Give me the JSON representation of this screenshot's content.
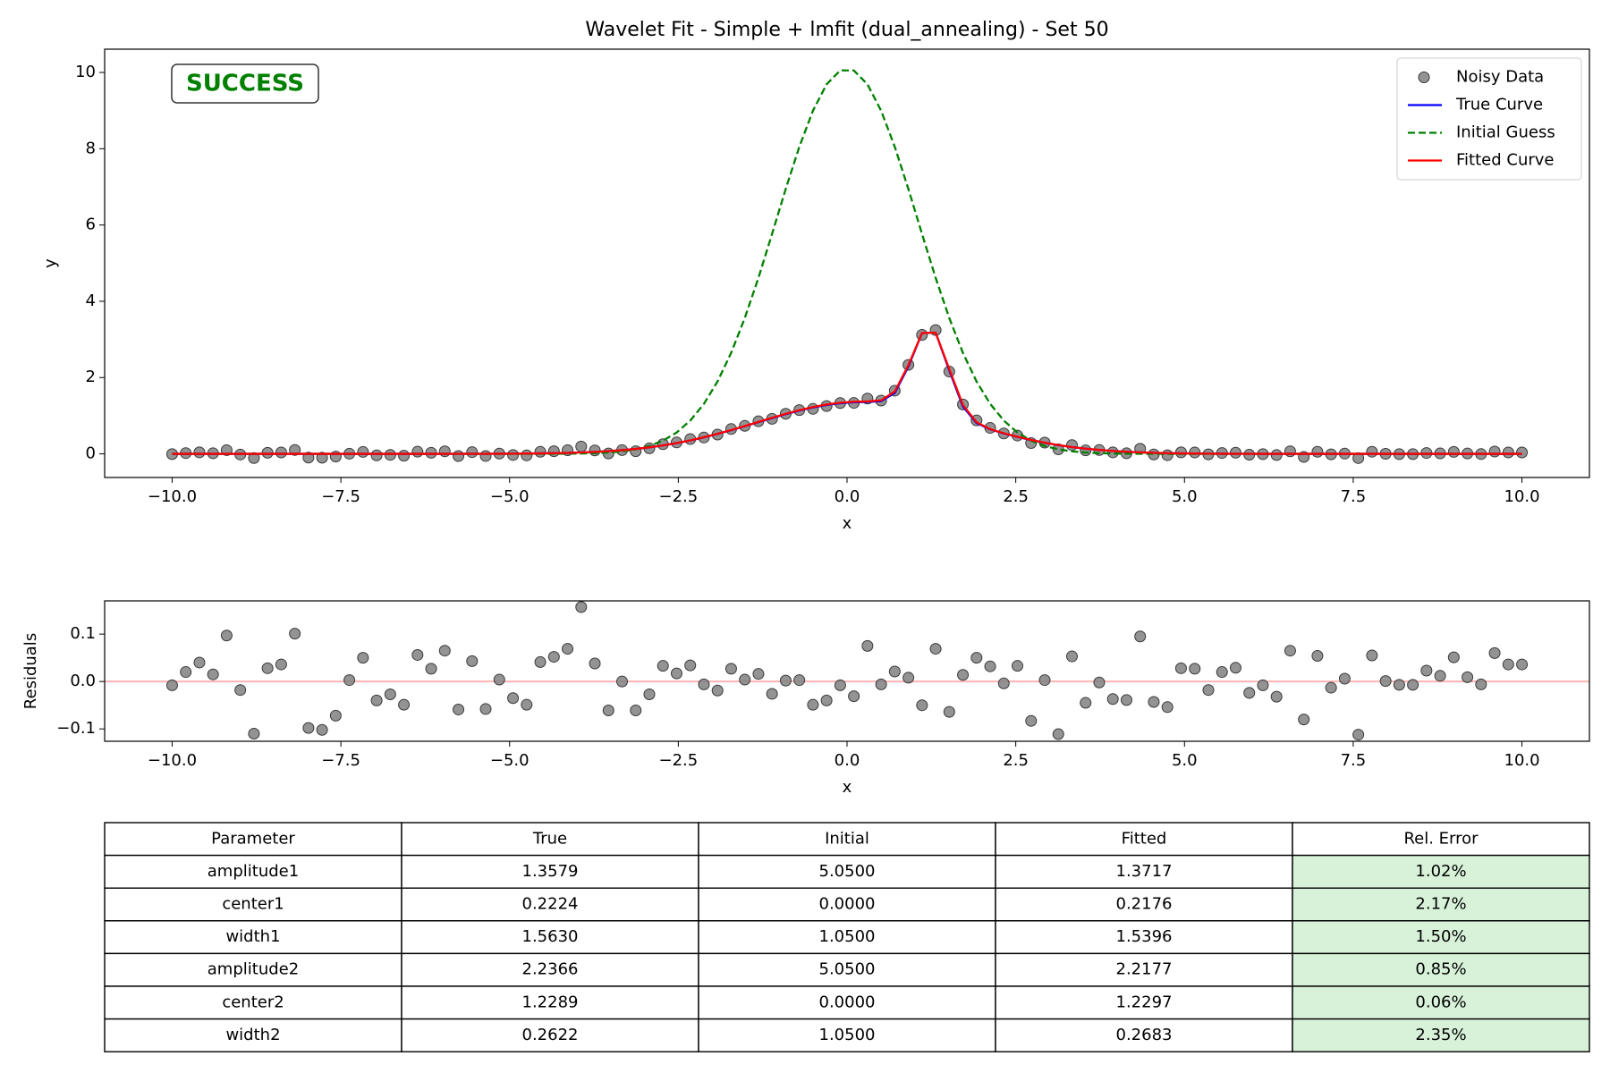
{
  "chart_data": [
    {
      "type": "line",
      "title": "Wavelet Fit - Simple + lmfit (dual_annealing) - Set 50",
      "xlabel": "x",
      "ylabel": "y",
      "annotation": {
        "text": "SUCCESS",
        "color": "#008000"
      },
      "legend": "upper right",
      "x": [
        -10,
        -9.798,
        -9.596,
        -9.394,
        -9.192,
        -8.99,
        -8.788,
        -8.586,
        -8.384,
        -8.182,
        -7.98,
        -7.778,
        -7.576,
        -7.374,
        -7.172,
        -6.97,
        -6.768,
        -6.566,
        -6.364,
        -6.162,
        -5.96,
        -5.758,
        -5.556,
        -5.354,
        -5.152,
        -4.949,
        -4.747,
        -4.545,
        -4.343,
        -4.141,
        -3.939,
        -3.737,
        -3.535,
        -3.333,
        -3.131,
        -2.929,
        -2.727,
        -2.525,
        -2.323,
        -2.121,
        -1.919,
        -1.717,
        -1.515,
        -1.313,
        -1.111,
        -0.909,
        -0.707,
        -0.505,
        -0.303,
        -0.101,
        0.101,
        0.303,
        0.505,
        0.707,
        0.909,
        1.111,
        1.313,
        1.515,
        1.717,
        1.919,
        2.121,
        2.323,
        2.525,
        2.727,
        2.929,
        3.131,
        3.333,
        3.535,
        3.737,
        3.939,
        4.141,
        4.343,
        4.545,
        4.747,
        4.949,
        5.152,
        5.354,
        5.556,
        5.758,
        5.96,
        6.162,
        6.364,
        6.566,
        6.768,
        6.97,
        7.172,
        7.374,
        7.576,
        7.778,
        7.98,
        8.182,
        8.384,
        8.586,
        8.788,
        8.99,
        9.192,
        9.394,
        9.596,
        9.798,
        10
      ],
      "series": [
        {
          "name": "Noisy Data",
          "color": "#808080",
          "marker": true,
          "values": [
            -0.008,
            0.02,
            0.04,
            0.015,
            0.097,
            -0.018,
            -0.11,
            0.028,
            0.036,
            0.101,
            -0.098,
            -0.102,
            -0.072,
            0.003,
            0.05,
            -0.04,
            -0.027,
            -0.049,
            0.056,
            0.027,
            0.065,
            -0.058,
            0.044,
            -0.056,
            0.007,
            -0.03,
            -0.041,
            0.053,
            0.069,
            0.094,
            0.193,
            0.089,
            0.01,
            0.097,
            0.068,
            0.144,
            0.254,
            0.299,
            0.387,
            0.428,
            0.506,
            0.651,
            0.733,
            0.853,
            0.919,
            1.051,
            1.147,
            1.178,
            1.253,
            1.332,
            1.336,
            1.449,
            1.397,
            1.655,
            2.332,
            3.119,
            3.246,
            2.157,
            1.294,
            0.878,
            0.68,
            0.535,
            0.48,
            0.282,
            0.295,
            0.119,
            0.231,
            0.091,
            0.1,
            0.038,
            0.015,
            0.133,
            -0.016,
            -0.036,
            0.04,
            0.035,
            -0.013,
            0.023,
            0.031,
            -0.023,
            -0.008,
            -0.032,
            0.065,
            -0.08,
            0.054,
            -0.013,
            0.006,
            -0.112,
            0.055,
            0.001,
            -0.007,
            -0.007,
            0.023,
            0.012,
            0.051,
            0.009,
            -0.006,
            0.06,
            0.036,
            0.036
          ]
        },
        {
          "name": "True Curve",
          "color": "#0000ff",
          "values": [
            0,
            0,
            0,
            0,
            0,
            0,
            0,
            0,
            0,
            0,
            0,
            0,
            0,
            0,
            0,
            0,
            0,
            0,
            0,
            0,
            0,
            0.001,
            0.001,
            0.002,
            0.003,
            0.005,
            0.008,
            0.012,
            0.017,
            0.025,
            0.036,
            0.051,
            0.071,
            0.097,
            0.129,
            0.17,
            0.22,
            0.281,
            0.351,
            0.432,
            0.522,
            0.62,
            0.724,
            0.831,
            0.937,
            1.04,
            1.134,
            1.216,
            1.281,
            1.327,
            1.353,
            1.36,
            1.381,
            1.597,
            2.289,
            3.167,
            3.178,
            2.185,
            1.24,
            0.808,
            0.641,
            0.534,
            0.443,
            0.362,
            0.29,
            0.228,
            0.177,
            0.135,
            0.101,
            0.074,
            0.054,
            0.038,
            0.027,
            0.018,
            0.012,
            0.008,
            0.005,
            0.003,
            0.002,
            0.001,
            0,
            0,
            0,
            0,
            0,
            0,
            0,
            0,
            0,
            0,
            0,
            0,
            0,
            0,
            0,
            0,
            0,
            0,
            0,
            0
          ]
        },
        {
          "name": "Initial Guess",
          "color": "#008000",
          "dashed": true,
          "values": [
            0,
            0,
            0,
            0,
            0,
            0,
            0,
            0,
            0,
            0,
            0,
            0,
            0,
            0,
            0,
            0,
            0,
            0,
            0,
            0,
            0,
            0,
            0,
            0,
            0,
            0,
            0,
            0.001,
            0.002,
            0.004,
            0.009,
            0.018,
            0.035,
            0.065,
            0.118,
            0.206,
            0.346,
            0.559,
            0.872,
            1.31,
            1.897,
            2.647,
            3.561,
            4.614,
            5.766,
            6.943,
            8.051,
            8.997,
            9.688,
            10.053,
            10.053,
            9.688,
            8.997,
            8.051,
            6.943,
            5.766,
            4.614,
            3.561,
            2.647,
            1.897,
            1.31,
            0.872,
            0.559,
            0.346,
            0.206,
            0.118,
            0.065,
            0.035,
            0.018,
            0.009,
            0.004,
            0.002,
            0.001,
            0,
            0,
            0,
            0,
            0,
            0,
            0,
            0,
            0,
            0,
            0,
            0,
            0,
            0,
            0,
            0,
            0,
            0,
            0,
            0,
            0,
            0,
            0,
            0,
            0,
            0,
            0
          ]
        },
        {
          "name": "Fitted Curve",
          "color": "#ff0000",
          "values": [
            0,
            0,
            0,
            0,
            0,
            0,
            0,
            0,
            0,
            0,
            0,
            0,
            0,
            0,
            0,
            0,
            0,
            0,
            0,
            0,
            0,
            0.001,
            0.001,
            0.002,
            0.003,
            0.005,
            0.008,
            0.012,
            0.017,
            0.025,
            0.036,
            0.051,
            0.071,
            0.097,
            0.129,
            0.171,
            0.221,
            0.282,
            0.353,
            0.434,
            0.525,
            0.624,
            0.729,
            0.837,
            0.945,
            1.049,
            1.144,
            1.227,
            1.293,
            1.34,
            1.367,
            1.374,
            1.403,
            1.634,
            2.324,
            3.169,
            3.177,
            2.221,
            1.28,
            0.828,
            0.648,
            0.539,
            0.447,
            0.365,
            0.292,
            0.23,
            0.178,
            0.136,
            0.102,
            0.075,
            0.054,
            0.038,
            0.027,
            0.018,
            0.012,
            0.008,
            0.005,
            0.003,
            0.002,
            0.001,
            0,
            0,
            0,
            0,
            0,
            0,
            0,
            0,
            0,
            0,
            0,
            0,
            0,
            0,
            0,
            0,
            0,
            0,
            0,
            0
          ]
        }
      ],
      "xlim": [
        -11,
        11
      ],
      "xticks": [
        {
          "value": -10,
          "label": "−10.0"
        },
        {
          "value": -7.5,
          "label": "−7.5"
        },
        {
          "value": -5,
          "label": "−5.0"
        },
        {
          "value": -2.5,
          "label": "−2.5"
        },
        {
          "value": 0,
          "label": "0.0"
        },
        {
          "value": 2.5,
          "label": "2.5"
        },
        {
          "value": 5,
          "label": "5.0"
        },
        {
          "value": 7.5,
          "label": "7.5"
        },
        {
          "value": 10,
          "label": "10.0"
        }
      ],
      "ylim": [
        -0.62,
        10.61
      ],
      "yticks": [
        0,
        2,
        4,
        6,
        8,
        10
      ]
    },
    {
      "type": "scatter",
      "xlabel": "x",
      "ylabel": "Residuals",
      "color": "#808080",
      "hline": 0,
      "hline_color": "#ffb3b3",
      "x": [
        -10,
        -9.798,
        -9.596,
        -9.394,
        -9.192,
        -8.99,
        -8.788,
        -8.586,
        -8.384,
        -8.182,
        -7.98,
        -7.778,
        -7.576,
        -7.374,
        -7.172,
        -6.97,
        -6.768,
        -6.566,
        -6.364,
        -6.162,
        -5.96,
        -5.758,
        -5.556,
        -5.354,
        -5.152,
        -4.949,
        -4.747,
        -4.545,
        -4.343,
        -4.141,
        -3.939,
        -3.737,
        -3.535,
        -3.333,
        -3.131,
        -2.929,
        -2.727,
        -2.525,
        -2.323,
        -2.121,
        -1.919,
        -1.717,
        -1.515,
        -1.313,
        -1.111,
        -0.909,
        -0.707,
        -0.505,
        -0.303,
        -0.101,
        0.101,
        0.303,
        0.505,
        0.707,
        0.909,
        1.111,
        1.313,
        1.515,
        1.717,
        1.919,
        2.121,
        2.323,
        2.525,
        2.727,
        2.929,
        3.131,
        3.333,
        3.535,
        3.737,
        3.939,
        4.141,
        4.343,
        4.545,
        4.747,
        4.949,
        5.152,
        5.354,
        5.556,
        5.758,
        5.96,
        6.162,
        6.364,
        6.566,
        6.768,
        6.97,
        7.172,
        7.374,
        7.576,
        7.778,
        7.98,
        8.182,
        8.384,
        8.586,
        8.788,
        8.99,
        9.192,
        9.394,
        9.596,
        9.798,
        10
      ],
      "values": [
        -0.008,
        0.02,
        0.04,
        0.015,
        0.097,
        -0.018,
        -0.11,
        0.028,
        0.036,
        0.101,
        -0.098,
        -0.102,
        -0.072,
        0.003,
        0.05,
        -0.04,
        -0.027,
        -0.049,
        0.056,
        0.027,
        0.065,
        -0.059,
        0.043,
        -0.058,
        0.004,
        -0.035,
        -0.049,
        0.041,
        0.052,
        0.069,
        0.157,
        0.038,
        -0.061,
        0,
        -0.061,
        -0.027,
        0.033,
        0.017,
        0.034,
        -0.006,
        -0.019,
        0.027,
        0.004,
        0.016,
        -0.026,
        0.002,
        0.003,
        -0.049,
        -0.04,
        -0.008,
        -0.031,
        0.075,
        -0.006,
        0.021,
        0.008,
        -0.05,
        0.069,
        -0.064,
        0.014,
        0.05,
        0.032,
        -0.004,
        0.033,
        -0.083,
        0.003,
        -0.111,
        0.053,
        -0.045,
        -0.002,
        -0.037,
        -0.039,
        0.095,
        -0.043,
        -0.054,
        0.028,
        0.027,
        -0.018,
        0.02,
        0.029,
        -0.024,
        -0.008,
        -0.032,
        0.065,
        -0.08,
        0.054,
        -0.013,
        0.006,
        -0.112,
        0.055,
        0.001,
        -0.007,
        -0.007,
        0.023,
        0.012,
        0.051,
        0.009,
        -0.006,
        0.06,
        0.036,
        0.036
      ],
      "xlim": [
        -11,
        11
      ],
      "xticks": [
        {
          "value": -10,
          "label": "−10.0"
        },
        {
          "value": -7.5,
          "label": "−7.5"
        },
        {
          "value": -5,
          "label": "−5.0"
        },
        {
          "value": -2.5,
          "label": "−2.5"
        },
        {
          "value": 0,
          "label": "0.0"
        },
        {
          "value": 2.5,
          "label": "2.5"
        },
        {
          "value": 5,
          "label": "5.0"
        },
        {
          "value": 7.5,
          "label": "7.5"
        },
        {
          "value": 10,
          "label": "10.0"
        }
      ],
      "ylim": [
        -0.126,
        0.17
      ],
      "yticks": [
        {
          "value": -0.1,
          "label": "−0.1"
        },
        {
          "value": 0,
          "label": "0.0"
        },
        {
          "value": 0.1,
          "label": "0.1"
        }
      ]
    }
  ],
  "table": {
    "header": [
      "Parameter",
      "True",
      "Initial",
      "Fitted",
      "Rel. Error"
    ],
    "rows": [
      [
        "amplitude1",
        "1.3579",
        "5.0500",
        "1.3717",
        "1.02%"
      ],
      [
        "center1",
        "0.2224",
        "0.0000",
        "0.2176",
        "2.17%"
      ],
      [
        "width1",
        "1.5630",
        "1.0500",
        "1.5396",
        "1.50%"
      ],
      [
        "amplitude2",
        "2.2366",
        "5.0500",
        "2.2177",
        "0.85%"
      ],
      [
        "center2",
        "1.2289",
        "0.0000",
        "1.2297",
        "0.06%"
      ],
      [
        "width2",
        "0.2622",
        "1.0500",
        "0.2683",
        "2.35%"
      ]
    ],
    "highlight_column": 4,
    "highlight_color": "#d8f2da"
  }
}
